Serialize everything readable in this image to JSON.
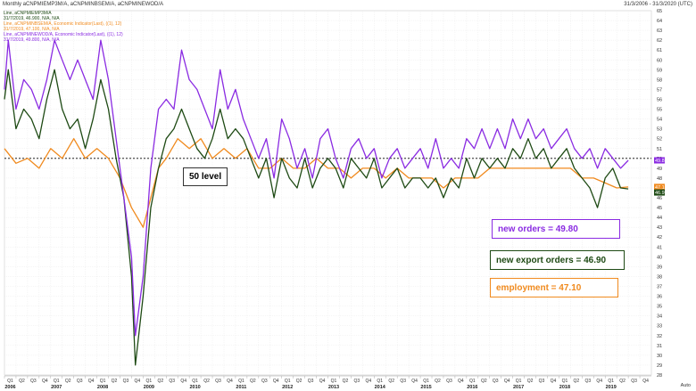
{
  "header": {
    "title": "Monthly aCNPMIEMP3M/A, aCNPMINBSEM/A, aCNPMINEWOD/A",
    "date_range": "31/3/2006 - 31/3/2020 (UTC)"
  },
  "legend": {
    "line1": "Line, aCNPMIEMP3M/A",
    "line1_values": "31/7/2019, 46.900, N/A, N/A",
    "line2": "Line, aCNPMINBSEM/A, Economic Indicator(Last), ((1), 12)",
    "line2_values": "31/7/2019, 47.100, N/A, N/A",
    "line3": "Line, aCNPMINEWOD/A, Economic Indicator(Last), ((1), 12)",
    "line3_values": "31/7/2019, 49.800, N/A, N/A"
  },
  "annotations": {
    "level_label": "50 level",
    "new_orders": "new orders = 49.80",
    "new_export_orders": "new export orders = 46.90",
    "employment": "employment = 47.10"
  },
  "axis": {
    "auto_label": "Auto",
    "last_new_orders": "49.8",
    "last_employment": "47.1",
    "last_export": "46.9"
  },
  "colors": {
    "new_orders": "#8a2be2",
    "new_export_orders": "#1e4a14",
    "employment": "#f08a1e",
    "level_line": "#000000",
    "grid": "#e6e6e6"
  },
  "chart_data": {
    "type": "line",
    "ylim": [
      28,
      65
    ],
    "xlim": [
      "2006-01",
      "2019-12"
    ],
    "reference_level": 50,
    "grid": true,
    "series": [
      {
        "name": "new orders",
        "points": [
          [
            "2006-01",
            57
          ],
          [
            "2006-02",
            62
          ],
          [
            "2006-04",
            55
          ],
          [
            "2006-06",
            58
          ],
          [
            "2006-08",
            57
          ],
          [
            "2006-10",
            55
          ],
          [
            "2006-12",
            58
          ],
          [
            "2007-02",
            62
          ],
          [
            "2007-04",
            60
          ],
          [
            "2007-06",
            58
          ],
          [
            "2007-08",
            60
          ],
          [
            "2007-10",
            58
          ],
          [
            "2007-12",
            56
          ],
          [
            "2008-02",
            62
          ],
          [
            "2008-04",
            58
          ],
          [
            "2008-06",
            52
          ],
          [
            "2008-08",
            46
          ],
          [
            "2008-10",
            40
          ],
          [
            "2008-11",
            32
          ],
          [
            "2009-01",
            38
          ],
          [
            "2009-03",
            49
          ],
          [
            "2009-05",
            55
          ],
          [
            "2009-07",
            56
          ],
          [
            "2009-09",
            55
          ],
          [
            "2009-11",
            61
          ],
          [
            "2010-01",
            58
          ],
          [
            "2010-03",
            57
          ],
          [
            "2010-05",
            55
          ],
          [
            "2010-07",
            53
          ],
          [
            "2010-09",
            59
          ],
          [
            "2010-11",
            55
          ],
          [
            "2011-01",
            57
          ],
          [
            "2011-03",
            54
          ],
          [
            "2011-05",
            52
          ],
          [
            "2011-07",
            50
          ],
          [
            "2011-09",
            52
          ],
          [
            "2011-11",
            48
          ],
          [
            "2012-01",
            54
          ],
          [
            "2012-03",
            52
          ],
          [
            "2012-05",
            49
          ],
          [
            "2012-07",
            51
          ],
          [
            "2012-09",
            48
          ],
          [
            "2012-11",
            52
          ],
          [
            "2013-01",
            53
          ],
          [
            "2013-03",
            50
          ],
          [
            "2013-05",
            48
          ],
          [
            "2013-07",
            51
          ],
          [
            "2013-09",
            52
          ],
          [
            "2013-11",
            50
          ],
          [
            "2014-01",
            51
          ],
          [
            "2014-03",
            48
          ],
          [
            "2014-05",
            50
          ],
          [
            "2014-07",
            51
          ],
          [
            "2014-09",
            49
          ],
          [
            "2014-11",
            50
          ],
          [
            "2015-01",
            51
          ],
          [
            "2015-03",
            49
          ],
          [
            "2015-05",
            52
          ],
          [
            "2015-07",
            49
          ],
          [
            "2015-09",
            50
          ],
          [
            "2015-11",
            49
          ],
          [
            "2016-01",
            52
          ],
          [
            "2016-03",
            51
          ],
          [
            "2016-05",
            53
          ],
          [
            "2016-07",
            51
          ],
          [
            "2016-09",
            53
          ],
          [
            "2016-11",
            51
          ],
          [
            "2017-01",
            54
          ],
          [
            "2017-03",
            52
          ],
          [
            "2017-05",
            54
          ],
          [
            "2017-07",
            52
          ],
          [
            "2017-09",
            53
          ],
          [
            "2017-11",
            51
          ],
          [
            "2018-01",
            52
          ],
          [
            "2018-03",
            53
          ],
          [
            "2018-05",
            51
          ],
          [
            "2018-07",
            50
          ],
          [
            "2018-09",
            51
          ],
          [
            "2018-11",
            49
          ],
          [
            "2019-01",
            51
          ],
          [
            "2019-03",
            50
          ],
          [
            "2019-05",
            49
          ],
          [
            "2019-07",
            49.8
          ]
        ]
      },
      {
        "name": "new export orders",
        "points": [
          [
            "2006-01",
            56
          ],
          [
            "2006-02",
            59
          ],
          [
            "2006-04",
            53
          ],
          [
            "2006-06",
            55
          ],
          [
            "2006-08",
            54
          ],
          [
            "2006-10",
            52
          ],
          [
            "2006-12",
            56
          ],
          [
            "2007-02",
            59
          ],
          [
            "2007-04",
            55
          ],
          [
            "2007-06",
            53
          ],
          [
            "2007-08",
            54
          ],
          [
            "2007-10",
            51
          ],
          [
            "2007-12",
            54
          ],
          [
            "2008-02",
            58
          ],
          [
            "2008-04",
            55
          ],
          [
            "2008-06",
            50
          ],
          [
            "2008-08",
            46
          ],
          [
            "2008-10",
            38
          ],
          [
            "2008-11",
            29
          ],
          [
            "2009-01",
            36
          ],
          [
            "2009-03",
            45
          ],
          [
            "2009-05",
            49
          ],
          [
            "2009-07",
            52
          ],
          [
            "2009-09",
            53
          ],
          [
            "2009-11",
            55
          ],
          [
            "2010-01",
            53
          ],
          [
            "2010-03",
            51
          ],
          [
            "2010-05",
            50
          ],
          [
            "2010-07",
            52
          ],
          [
            "2010-09",
            55
          ],
          [
            "2010-11",
            52
          ],
          [
            "2011-01",
            53
          ],
          [
            "2011-03",
            52
          ],
          [
            "2011-05",
            50
          ],
          [
            "2011-07",
            48
          ],
          [
            "2011-09",
            50
          ],
          [
            "2011-11",
            46
          ],
          [
            "2012-01",
            50
          ],
          [
            "2012-03",
            48
          ],
          [
            "2012-05",
            47
          ],
          [
            "2012-07",
            50
          ],
          [
            "2012-09",
            47
          ],
          [
            "2012-11",
            49
          ],
          [
            "2013-01",
            50
          ],
          [
            "2013-03",
            49
          ],
          [
            "2013-05",
            47
          ],
          [
            "2013-07",
            50
          ],
          [
            "2013-09",
            49
          ],
          [
            "2013-11",
            48
          ],
          [
            "2014-01",
            50
          ],
          [
            "2014-03",
            47
          ],
          [
            "2014-05",
            48
          ],
          [
            "2014-07",
            49
          ],
          [
            "2014-09",
            47
          ],
          [
            "2014-11",
            48
          ],
          [
            "2015-01",
            48
          ],
          [
            "2015-03",
            47
          ],
          [
            "2015-05",
            48
          ],
          [
            "2015-07",
            46
          ],
          [
            "2015-09",
            48
          ],
          [
            "2015-11",
            47
          ],
          [
            "2016-01",
            50
          ],
          [
            "2016-03",
            48
          ],
          [
            "2016-05",
            50
          ],
          [
            "2016-07",
            49
          ],
          [
            "2016-09",
            50
          ],
          [
            "2016-11",
            49
          ],
          [
            "2017-01",
            51
          ],
          [
            "2017-03",
            50
          ],
          [
            "2017-05",
            52
          ],
          [
            "2017-07",
            50
          ],
          [
            "2017-09",
            51
          ],
          [
            "2017-11",
            49
          ],
          [
            "2018-01",
            50
          ],
          [
            "2018-03",
            51
          ],
          [
            "2018-05",
            49
          ],
          [
            "2018-07",
            48
          ],
          [
            "2018-09",
            47
          ],
          [
            "2018-11",
            45
          ],
          [
            "2019-01",
            48
          ],
          [
            "2019-03",
            49
          ],
          [
            "2019-05",
            47
          ],
          [
            "2019-07",
            46.9
          ]
        ]
      },
      {
        "name": "employment",
        "points": [
          [
            "2006-01",
            51
          ],
          [
            "2006-04",
            49.5
          ],
          [
            "2006-07",
            50
          ],
          [
            "2006-10",
            49
          ],
          [
            "2007-01",
            51
          ],
          [
            "2007-04",
            50
          ],
          [
            "2007-07",
            52
          ],
          [
            "2007-10",
            50
          ],
          [
            "2008-01",
            51
          ],
          [
            "2008-04",
            50
          ],
          [
            "2008-07",
            48
          ],
          [
            "2008-10",
            45
          ],
          [
            "2009-01",
            43
          ],
          [
            "2009-03",
            46
          ],
          [
            "2009-05",
            49
          ],
          [
            "2009-07",
            50
          ],
          [
            "2009-10",
            52
          ],
          [
            "2010-01",
            51
          ],
          [
            "2010-04",
            52
          ],
          [
            "2010-07",
            50
          ],
          [
            "2010-10",
            51
          ],
          [
            "2011-01",
            50
          ],
          [
            "2011-04",
            51
          ],
          [
            "2011-07",
            49
          ],
          [
            "2011-10",
            49
          ],
          [
            "2012-01",
            50
          ],
          [
            "2012-04",
            49
          ],
          [
            "2012-07",
            49
          ],
          [
            "2012-10",
            50
          ],
          [
            "2013-01",
            49
          ],
          [
            "2013-04",
            49
          ],
          [
            "2013-07",
            48
          ],
          [
            "2013-10",
            49
          ],
          [
            "2014-01",
            49
          ],
          [
            "2014-04",
            48
          ],
          [
            "2014-07",
            49
          ],
          [
            "2014-10",
            48
          ],
          [
            "2015-01",
            48
          ],
          [
            "2015-04",
            48
          ],
          [
            "2015-07",
            47
          ],
          [
            "2015-10",
            48
          ],
          [
            "2016-01",
            48
          ],
          [
            "2016-04",
            48
          ],
          [
            "2016-07",
            49
          ],
          [
            "2016-10",
            49
          ],
          [
            "2017-01",
            49
          ],
          [
            "2017-04",
            49
          ],
          [
            "2017-07",
            49
          ],
          [
            "2017-10",
            49
          ],
          [
            "2018-01",
            49
          ],
          [
            "2018-04",
            49
          ],
          [
            "2018-07",
            48
          ],
          [
            "2018-10",
            48
          ],
          [
            "2019-01",
            47.5
          ],
          [
            "2019-04",
            47
          ],
          [
            "2019-07",
            47.1
          ]
        ]
      }
    ]
  }
}
